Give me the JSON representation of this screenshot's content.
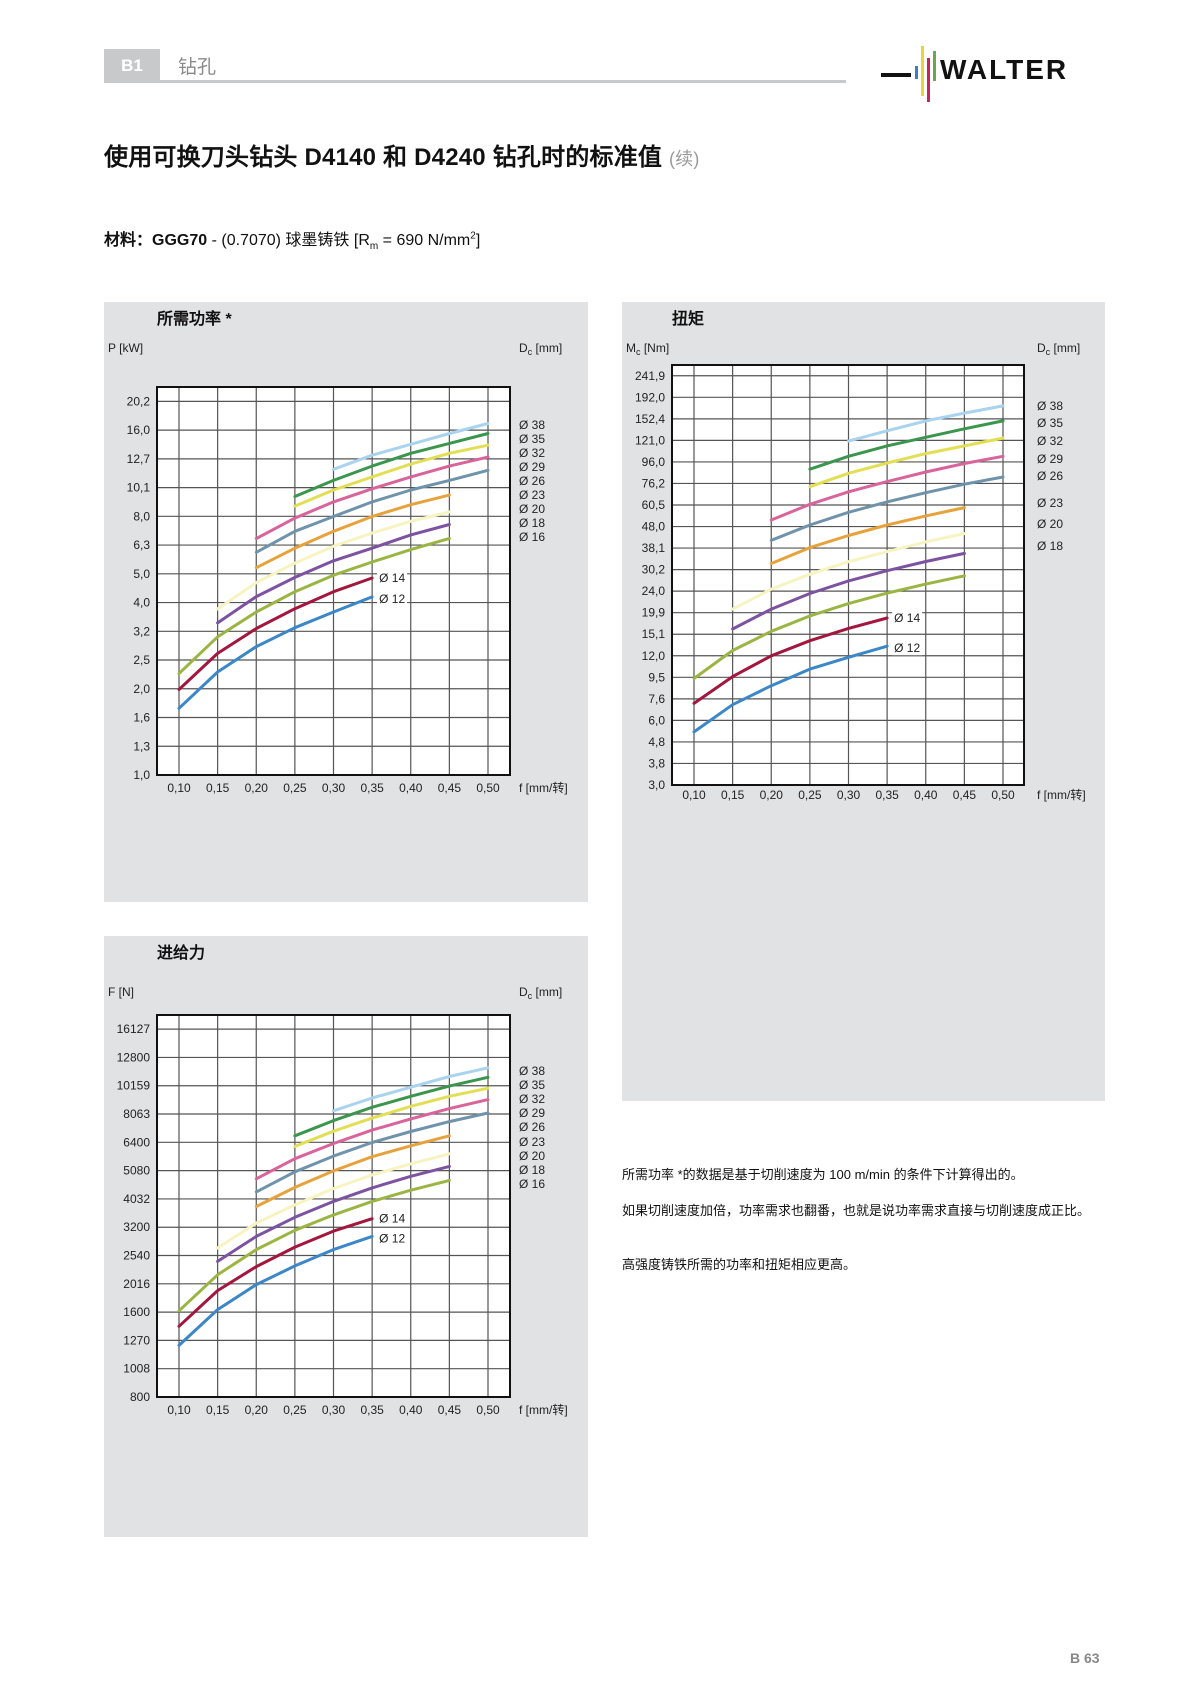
{
  "header": {
    "section": "B1",
    "chapter": "钻孔",
    "logo_text": "WALTER",
    "logo_colors": [
      "#3a7fc1",
      "#e9d43a",
      "#c8235a",
      "#6aa84f"
    ]
  },
  "title": {
    "main": "使用可换刀头钻头 D4140 和 D4240 钻孔时的标准值",
    "suffix": "(续)"
  },
  "material": {
    "label": "材料：",
    "grade": "GGG70",
    "desc": " - (0.7070) 球墨铸铁 ",
    "rm_open": "[R",
    "rm_sub": "m",
    "rm_val": " = 690 N/mm",
    "rm_sup": "2",
    "rm_close": "]"
  },
  "notes": [
    "所需功率 *的数据是基于切削速度为 100 m/min 的条件下计算得出的。",
    "如果切削速度加倍，功率需求也翻番，也就是说功率需求直接与切削速度成正比。",
    "高强度铸铁所需的功率和扭矩相应更高。"
  ],
  "page_number": "B 63",
  "chart_data": [
    {
      "id": "power",
      "type": "line",
      "title": "所需功率 *",
      "ylabel": {
        "main": "P",
        "sub": "",
        "unit": " [kW]"
      },
      "y2label": {
        "main": "D",
        "sub": "c",
        "unit": " [mm]"
      },
      "xlabel": "f [mm/转]",
      "yscale": "log",
      "ylim": [
        1.0,
        20.2
      ],
      "x_ticks": [
        "0,10",
        "0,15",
        "0,20",
        "0,25",
        "0,30",
        "0,35",
        "0,40",
        "0,45",
        "0,50"
      ],
      "y_ticks": [
        "1,0",
        "1,3",
        "1,6",
        "2,0",
        "2,5",
        "3,2",
        "4,0",
        "5,0",
        "6,3",
        "8,0",
        "10,1",
        "12,7",
        "16,0",
        "20,2"
      ],
      "grid": true,
      "series": [
        {
          "name": "Ø 38",
          "label": "right",
          "color": "#a9d3ee",
          "x": [
            0.3,
            0.35,
            0.4,
            0.45,
            0.5
          ],
          "y": [
            11.7,
            13.1,
            14.3,
            15.6,
            16.9
          ]
        },
        {
          "name": "Ø 35",
          "label": "right",
          "color": "#3a964c",
          "x": [
            0.25,
            0.3,
            0.35,
            0.4,
            0.45,
            0.5
          ],
          "y": [
            9.4,
            10.7,
            12.0,
            13.3,
            14.4,
            15.6
          ]
        },
        {
          "name": "Ø 32",
          "label": "right",
          "color": "#e2df55",
          "x": [
            0.25,
            0.3,
            0.35,
            0.4,
            0.45,
            0.5
          ],
          "y": [
            8.7,
            9.9,
            11.0,
            12.2,
            13.3,
            14.2
          ]
        },
        {
          "name": "Ø 29",
          "label": "right",
          "color": "#d9639b",
          "x": [
            0.2,
            0.25,
            0.3,
            0.35,
            0.4,
            0.45,
            0.5
          ],
          "y": [
            6.7,
            7.9,
            9.0,
            10.0,
            11.0,
            12.0,
            12.9
          ]
        },
        {
          "name": "Ø 26",
          "label": "right",
          "color": "#6f93ab",
          "x": [
            0.2,
            0.25,
            0.3,
            0.35,
            0.4,
            0.45,
            0.5
          ],
          "y": [
            6.0,
            7.1,
            8.0,
            9.0,
            9.9,
            10.7,
            11.6
          ]
        },
        {
          "name": "Ø 23",
          "label": "right",
          "color": "#e7a23c",
          "x": [
            0.2,
            0.25,
            0.3,
            0.35,
            0.4,
            0.45
          ],
          "y": [
            5.3,
            6.2,
            7.1,
            8.0,
            8.8,
            9.5
          ]
        },
        {
          "name": "Ø 20",
          "label": "right",
          "color": "#f7f4c2",
          "x": [
            0.15,
            0.2,
            0.25,
            0.3,
            0.35,
            0.4,
            0.45
          ],
          "y": [
            3.8,
            4.7,
            5.5,
            6.3,
            7.0,
            7.7,
            8.3
          ]
        },
        {
          "name": "Ø 18",
          "label": "right",
          "color": "#7c52a1",
          "x": [
            0.15,
            0.2,
            0.25,
            0.3,
            0.35,
            0.4,
            0.45
          ],
          "y": [
            3.4,
            4.2,
            4.9,
            5.6,
            6.2,
            6.9,
            7.5
          ]
        },
        {
          "name": "Ø 16",
          "label": "right",
          "color": "#9bb543",
          "x": [
            0.1,
            0.15,
            0.2,
            0.25,
            0.3,
            0.35,
            0.4,
            0.45
          ],
          "y": [
            2.26,
            3.04,
            3.71,
            4.37,
            4.99,
            5.55,
            6.13,
            6.71
          ]
        },
        {
          "name": "Ø 14",
          "label": "inline",
          "color": "#a3173f",
          "x": [
            0.1,
            0.15,
            0.2,
            0.25,
            0.3,
            0.35
          ],
          "y": [
            1.99,
            2.66,
            3.25,
            3.81,
            4.37,
            4.88
          ]
        },
        {
          "name": "Ø 12",
          "label": "inline",
          "color": "#3b87c7",
          "x": [
            0.1,
            0.15,
            0.2,
            0.25,
            0.3,
            0.35
          ],
          "y": [
            1.71,
            2.29,
            2.81,
            3.27,
            3.71,
            4.19
          ]
        }
      ]
    },
    {
      "id": "torque",
      "type": "line",
      "title": "扭矩",
      "ylabel": {
        "main": "M",
        "sub": "c",
        "unit": " [Nm]"
      },
      "y2label": {
        "main": "D",
        "sub": "c",
        "unit": " [mm]"
      },
      "xlabel": "f [mm/转]",
      "yscale": "log",
      "ylim": [
        3.0,
        241.9
      ],
      "x_ticks": [
        "0,10",
        "0,15",
        "0,20",
        "0,25",
        "0,30",
        "0,35",
        "0,40",
        "0,45",
        "0,50"
      ],
      "y_ticks": [
        "3,0",
        "3,8",
        "4,8",
        "6,0",
        "7,6",
        "9,5",
        "12,0",
        "15,1",
        "19,9",
        "24,0",
        "30,2",
        "38,1",
        "48,0",
        "60,5",
        "76,2",
        "96,0",
        "121,0",
        "152,4",
        "192,0",
        "241,9"
      ],
      "grid": true,
      "series": [
        {
          "name": "Ø 38",
          "label": "right",
          "color": "#a9d3ee",
          "x": [
            0.3,
            0.35,
            0.4,
            0.45,
            0.5
          ],
          "y": [
            120,
            134,
            149,
            162,
            175
          ]
        },
        {
          "name": "Ø 35",
          "label": "right",
          "color": "#3a964c",
          "x": [
            0.25,
            0.3,
            0.35,
            0.4,
            0.45,
            0.5
          ],
          "y": [
            88.8,
            102,
            114,
            125,
            137,
            149
          ]
        },
        {
          "name": "Ø 32",
          "label": "right",
          "color": "#e2df55",
          "x": [
            0.25,
            0.3,
            0.35,
            0.4,
            0.45,
            0.5
          ],
          "y": [
            73.6,
            85.0,
            94.9,
            105,
            114,
            124
          ]
        },
        {
          "name": "Ø 29",
          "label": "right",
          "color": "#d9639b",
          "x": [
            0.2,
            0.25,
            0.3,
            0.35,
            0.4,
            0.45,
            0.5
          ],
          "y": [
            51.5,
            60.9,
            69.7,
            77.7,
            86.2,
            94.4,
            102
          ]
        },
        {
          "name": "Ø 26",
          "label": "right",
          "color": "#6f93ab",
          "x": [
            0.2,
            0.25,
            0.3,
            0.35,
            0.4,
            0.45,
            0.5
          ],
          "y": [
            41.4,
            48.8,
            55.9,
            62.5,
            69.0,
            75.6,
            81.7
          ]
        },
        {
          "name": "Ø 23",
          "label": "right",
          "color": "#e7a23c",
          "x": [
            0.2,
            0.25,
            0.3,
            0.35,
            0.4,
            0.45
          ],
          "y": [
            32.3,
            38.3,
            43.6,
            48.8,
            53.8,
            58.8
          ]
        },
        {
          "name": "Ø 20",
          "label": "right",
          "color": "#f7f4c2",
          "x": [
            0.15,
            0.2,
            0.25,
            0.3,
            0.35,
            0.4,
            0.45
          ],
          "y": [
            19.8,
            24.5,
            28.8,
            32.9,
            36.7,
            40.7,
            44.5
          ]
        },
        {
          "name": "Ø 18",
          "label": "right",
          "color": "#7c52a1",
          "x": [
            0.15,
            0.2,
            0.25,
            0.3,
            0.35,
            0.4,
            0.45
          ],
          "y": [
            16.0,
            19.8,
            23.4,
            26.8,
            29.9,
            33.0,
            36.0
          ]
        },
        {
          "name": "",
          "label": "none",
          "color": "#9bb543",
          "x": [
            0.1,
            0.15,
            0.2,
            0.25,
            0.3,
            0.35,
            0.4,
            0.45
          ],
          "y": [
            9.4,
            12.7,
            15.6,
            18.4,
            21.0,
            23.5,
            25.9,
            28.3
          ]
        },
        {
          "name": "Ø 14",
          "label": "inline",
          "color": "#a3173f",
          "x": [
            0.1,
            0.15,
            0.2,
            0.25,
            0.3,
            0.35
          ],
          "y": [
            7.2,
            9.6,
            12.0,
            14.1,
            16.1,
            18.0
          ]
        },
        {
          "name": "Ø 12",
          "label": "inline",
          "color": "#3b87c7",
          "x": [
            0.1,
            0.15,
            0.2,
            0.25,
            0.3,
            0.35
          ],
          "y": [
            5.3,
            7.1,
            8.7,
            10.4,
            11.8,
            13.3
          ]
        }
      ]
    },
    {
      "id": "force",
      "type": "line",
      "title": "进给力",
      "ylabel": {
        "main": "F",
        "sub": "",
        "unit": " [N]"
      },
      "y2label": {
        "main": "D",
        "sub": "c",
        "unit": " [mm]"
      },
      "xlabel": "f [mm/转]",
      "yscale": "log",
      "ylim": [
        800,
        16127
      ],
      "x_ticks": [
        "0,10",
        "0,15",
        "0,20",
        "0,25",
        "0,30",
        "0,35",
        "0,40",
        "0,45",
        "0,50"
      ],
      "y_ticks": [
        "800",
        "1008",
        "1270",
        "1600",
        "2016",
        "2540",
        "3200",
        "4032",
        "5080",
        "6400",
        "8063",
        "10159",
        "12800",
        "16127"
      ],
      "grid": true,
      "series": [
        {
          "name": "Ø 38",
          "label": "right",
          "color": "#a9d3ee",
          "x": [
            0.3,
            0.35,
            0.4,
            0.45,
            0.5
          ],
          "y": [
            8280,
            9190,
            10040,
            10960,
            11760
          ]
        },
        {
          "name": "Ø 35",
          "label": "right",
          "color": "#3a964c",
          "x": [
            0.25,
            0.3,
            0.35,
            0.4,
            0.45,
            0.5
          ],
          "y": [
            6750,
            7640,
            8520,
            9320,
            10130,
            10880
          ]
        },
        {
          "name": "Ø 32",
          "label": "right",
          "color": "#e2df55",
          "x": [
            0.25,
            0.3,
            0.35,
            0.4,
            0.45,
            0.5
          ],
          "y": [
            6190,
            7010,
            7800,
            8590,
            9320,
            9960
          ]
        },
        {
          "name": "Ø 29",
          "label": "right",
          "color": "#d9639b",
          "x": [
            0.2,
            0.25,
            0.3,
            0.35,
            0.4,
            0.45,
            0.5
          ],
          "y": [
            4750,
            5600,
            6340,
            7070,
            7750,
            8430,
            9070
          ]
        },
        {
          "name": "Ø 26",
          "label": "right",
          "color": "#6f93ab",
          "x": [
            0.2,
            0.25,
            0.3,
            0.35,
            0.4,
            0.45,
            0.5
          ],
          "y": [
            4270,
            5030,
            5720,
            6390,
            6990,
            7580,
            8130
          ]
        },
        {
          "name": "Ø 23",
          "label": "right",
          "color": "#e7a23c",
          "x": [
            0.2,
            0.25,
            0.3,
            0.35,
            0.4,
            0.45
          ],
          "y": [
            3790,
            4430,
            5070,
            5690,
            6220,
            6750
          ]
        },
        {
          "name": "Ø 20",
          "label": "right",
          "color": "#f7f4c2",
          "x": [
            0.15,
            0.2,
            0.25,
            0.3,
            0.35,
            0.4,
            0.45
          ],
          "y": [
            2700,
            3310,
            3840,
            4390,
            4900,
            5370,
            5830
          ]
        },
        {
          "name": "Ø 18",
          "label": "right",
          "color": "#7c52a1",
          "x": [
            0.15,
            0.2,
            0.25,
            0.3,
            0.35,
            0.4,
            0.45
          ],
          "y": [
            2420,
            2970,
            3470,
            3950,
            4410,
            4850,
            5260
          ]
        },
        {
          "name": "Ø 16",
          "label": "right",
          "color": "#9bb543",
          "x": [
            0.1,
            0.15,
            0.2,
            0.25,
            0.3,
            0.35,
            0.4,
            0.45
          ],
          "y": [
            1617,
            2170,
            2666,
            3120,
            3540,
            3950,
            4330,
            4690
          ]
        },
        {
          "name": "Ø 14",
          "label": "inline",
          "color": "#a3173f",
          "x": [
            0.1,
            0.15,
            0.2,
            0.25,
            0.3,
            0.35
          ],
          "y": [
            1425,
            1907,
            2320,
            2720,
            3100,
            3430
          ]
        },
        {
          "name": "Ø 12",
          "label": "inline",
          "color": "#3b87c7",
          "x": [
            0.1,
            0.15,
            0.2,
            0.25,
            0.3,
            0.35
          ],
          "y": [
            1219,
            1633,
            2003,
            2334,
            2666,
            2970
          ]
        }
      ]
    }
  ]
}
